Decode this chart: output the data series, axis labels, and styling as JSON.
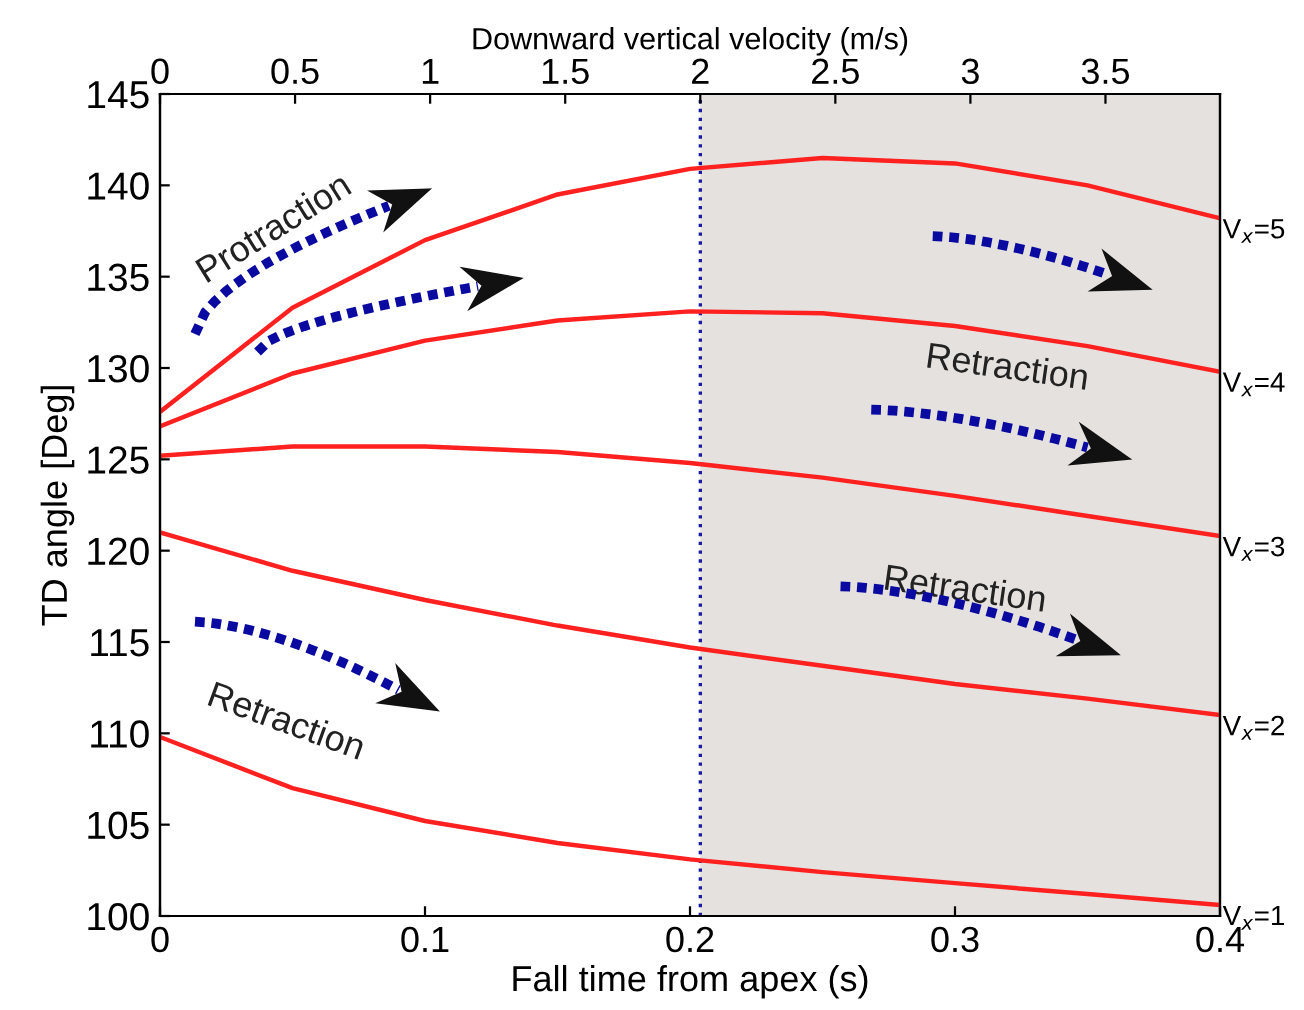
{
  "chart_data": {
    "type": "line",
    "xlabel": "Fall time from apex (s)",
    "ylabel": "TD angle [Deg]",
    "x2label": "Downward vertical velocity (m/s)",
    "x": [
      0,
      0.05,
      0.1,
      0.15,
      0.2,
      0.25,
      0.3,
      0.35,
      0.4
    ],
    "series": [
      {
        "name": "V$_{x}$=5",
        "color": "#ff2020",
        "values": [
          127.6,
          133.3,
          137.0,
          139.5,
          140.9,
          141.5,
          141.2,
          140.0,
          138.2
        ]
      },
      {
        "name": "V$_{x}$=4",
        "color": "#ff2020",
        "values": [
          126.8,
          129.7,
          131.5,
          132.6,
          133.1,
          133.0,
          132.3,
          131.2,
          129.8
        ]
      },
      {
        "name": "V$_{x}$=3",
        "color": "#ff2020",
        "values": [
          125.2,
          125.7,
          125.7,
          125.4,
          124.8,
          124.0,
          123.0,
          121.9,
          120.8
        ]
      },
      {
        "name": "V$_{x}$=2",
        "color": "#ff2020",
        "values": [
          121.0,
          118.9,
          117.3,
          115.9,
          114.7,
          113.7,
          112.7,
          111.9,
          111.0
        ]
      },
      {
        "name": "V$_{x}$=1",
        "color": "#ff2020",
        "values": [
          109.8,
          107.0,
          105.2,
          104.0,
          103.1,
          102.4,
          101.8,
          101.2,
          100.6
        ]
      }
    ],
    "xlim": [
      0,
      0.4
    ],
    "xticks": [
      0,
      0.1,
      0.2,
      0.3,
      0.4
    ],
    "ylim": [
      100,
      145
    ],
    "yticks": [
      100,
      105,
      110,
      115,
      120,
      125,
      130,
      135,
      140,
      145
    ],
    "x2lim": [
      0,
      3.924
    ],
    "x2ticks": [
      0,
      0.5,
      1,
      1.5,
      2,
      2.5,
      3,
      3.5
    ],
    "ref_lines": [
      {
        "axis": "x",
        "value": 0.2039,
        "color": "#1a1aa0",
        "line_style": "dotted"
      }
    ],
    "bands": [
      {
        "axis": "x",
        "from": 0.2039,
        "to": 0.4,
        "color": "#e4e1df"
      }
    ],
    "annotations": [
      "Protraction",
      "Retraction",
      "Retraction",
      "Retraction"
    ],
    "grid": false,
    "legend": false,
    "marker": "none",
    "line_style": "solid"
  }
}
